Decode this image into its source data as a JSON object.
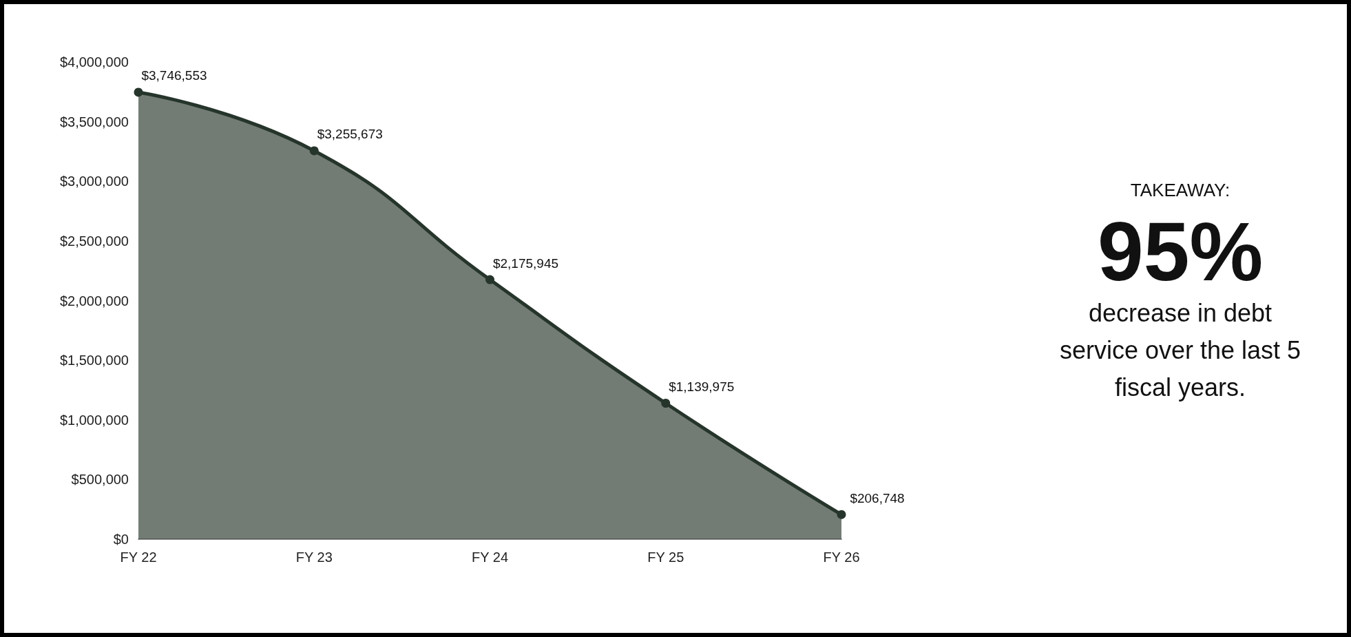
{
  "chart_data": {
    "type": "area",
    "categories": [
      "FY 22",
      "FY 23",
      "FY 24",
      "FY 25",
      "FY 26"
    ],
    "series": [
      {
        "color": "#26352b",
        "values": [
          3746553,
          3255673,
          2175945,
          1139975,
          206748
        ],
        "value_labels": [
          "$3,746,553",
          "$3,255,673",
          "$2,175,945",
          "$1,139,975",
          "$206,748"
        ]
      }
    ],
    "ylim": [
      0,
      4000000
    ],
    "yticks": [
      {
        "value": 0,
        "label": "$0"
      },
      {
        "value": 500000,
        "label": "$500,000"
      },
      {
        "value": 1000000,
        "label": "$1,000,000"
      },
      {
        "value": 1500000,
        "label": "$1,500,000"
      },
      {
        "value": 2000000,
        "label": "$2,000,000"
      },
      {
        "value": 2500000,
        "label": "$2,500,000"
      },
      {
        "value": 3000000,
        "label": "$3,000,000"
      },
      {
        "value": 3500000,
        "label": "$3,500,000"
      },
      {
        "value": 4000000,
        "label": "$4,000,000"
      }
    ],
    "grid": false,
    "marker": "circle",
    "annotations": [
      "TAKEAWAY:",
      "95%",
      "decrease in debt service over the last 5 fiscal years."
    ]
  }
}
